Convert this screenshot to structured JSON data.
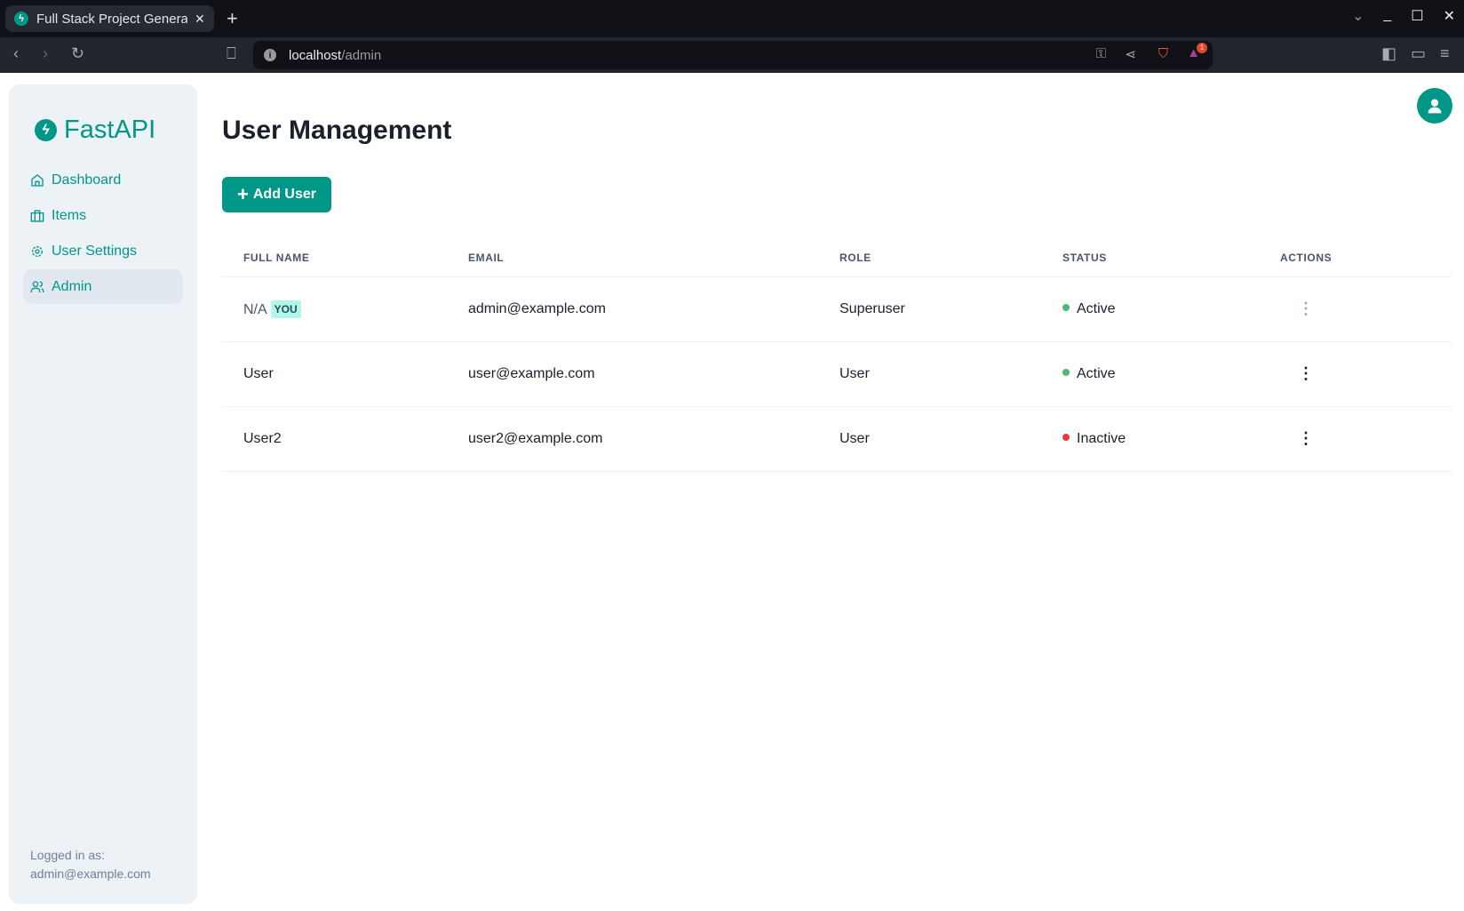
{
  "browser": {
    "tab_title": "Full Stack Project Generator",
    "url_host": "localhost",
    "url_path": "/admin",
    "extension_badge": "1"
  },
  "sidebar": {
    "logo": "FastAPI",
    "items": [
      {
        "label": "Dashboard",
        "icon": "home-icon"
      },
      {
        "label": "Items",
        "icon": "briefcase-icon"
      },
      {
        "label": "User Settings",
        "icon": "gear-icon"
      },
      {
        "label": "Admin",
        "icon": "users-icon",
        "active": true
      }
    ],
    "logged_in_label": "Logged in as:",
    "logged_in_email": "admin@example.com"
  },
  "main": {
    "title": "User Management",
    "add_button": "Add User",
    "columns": [
      "FULL NAME",
      "EMAIL",
      "ROLE",
      "STATUS",
      "ACTIONS"
    ],
    "rows": [
      {
        "name": "N/A",
        "badge": "YOU",
        "email": "admin@example.com",
        "role": "Superuser",
        "status": "Active"
      },
      {
        "name": "User",
        "email": "user@example.com",
        "role": "User",
        "status": "Active"
      },
      {
        "name": "User2",
        "email": "user2@example.com",
        "role": "User",
        "status": "Inactive"
      }
    ]
  },
  "colors": {
    "accent": "#009688",
    "active": "#48bb78",
    "inactive": "#e53e3e"
  }
}
